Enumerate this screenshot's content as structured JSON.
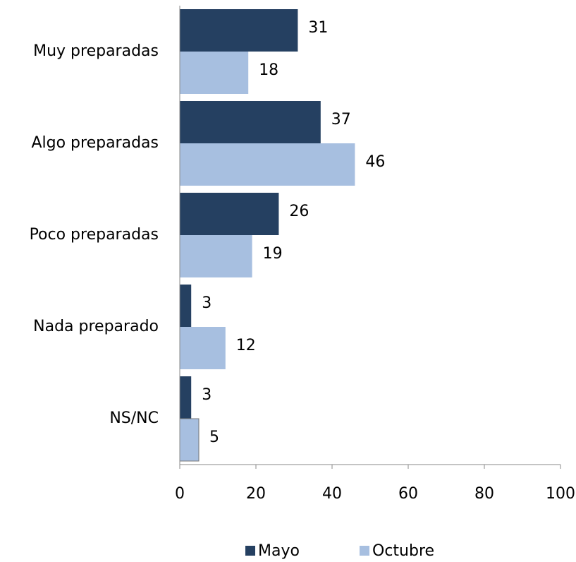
{
  "chart_data": {
    "type": "hbar",
    "categories": [
      "Muy preparadas",
      "Algo preparadas",
      "Poco preparadas",
      "Nada preparado",
      "NS/NC"
    ],
    "series": [
      {
        "name": "Mayo",
        "color": "#254061",
        "values": [
          31,
          37,
          26,
          3,
          3
        ]
      },
      {
        "name": "Octubre",
        "color": "#a7bfe0",
        "values": [
          18,
          46,
          19,
          12,
          5
        ]
      }
    ],
    "xlim": [
      0,
      100
    ],
    "xticks": [
      0,
      20,
      40,
      60,
      80,
      100
    ],
    "grid": false,
    "legend": "bottom"
  }
}
